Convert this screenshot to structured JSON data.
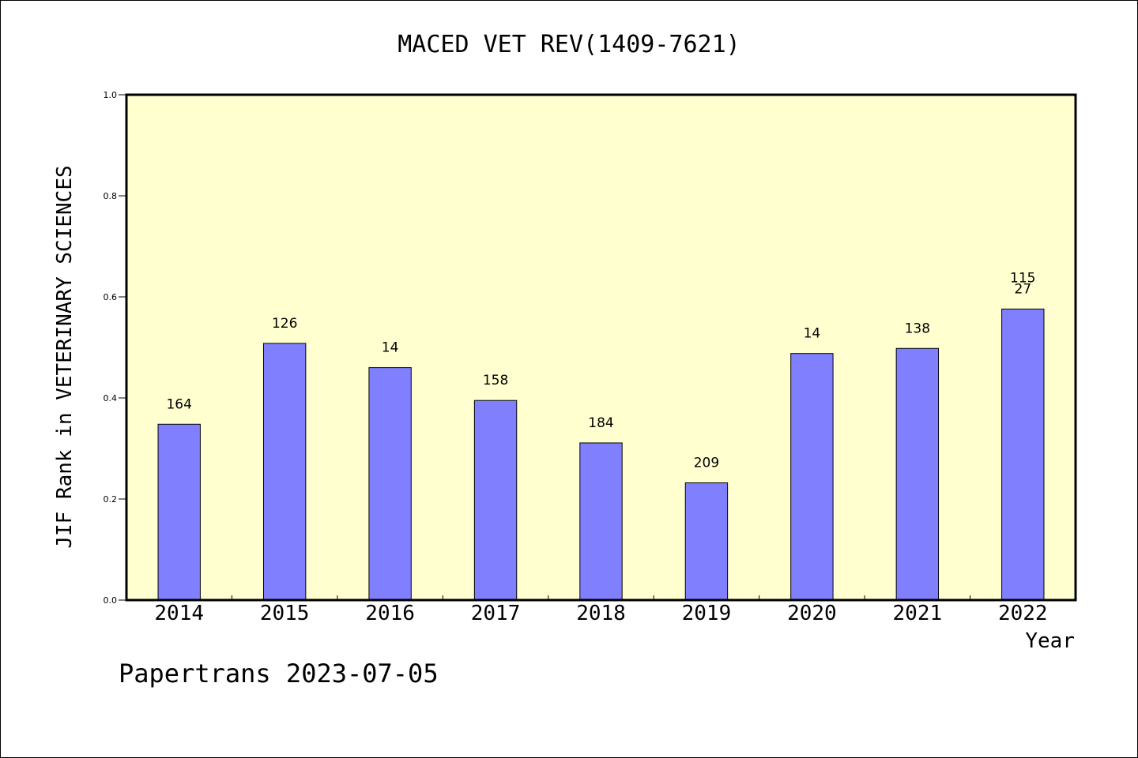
{
  "chart_data": {
    "type": "bar",
    "title": "MACED VET REV(1409-7621)",
    "ylabel": "JIF Rank in VETERINARY SCIENCES",
    "xlabel": "Year",
    "ylim": [
      0,
      1.0
    ],
    "yticks": [
      "0.0",
      "0.2",
      "0.4",
      "0.6",
      "0.8",
      "1.0"
    ],
    "categories": [
      "2014",
      "2015",
      "2016",
      "2017",
      "2018",
      "2019",
      "2020",
      "2021",
      "2022"
    ],
    "values": [
      0.348,
      0.508,
      0.46,
      0.395,
      0.311,
      0.232,
      0.488,
      0.498,
      0.576
    ],
    "bar_labels": [
      [
        "164"
      ],
      [
        "126"
      ],
      [
        "14"
      ],
      [
        "158"
      ],
      [
        "184"
      ],
      [
        "209"
      ],
      [
        "14"
      ],
      [
        "138"
      ],
      [
        "115",
        "27"
      ]
    ],
    "bar_color": "#8080ff",
    "plot_background": "#ffffd0",
    "grid": false,
    "footer": "Papertrans 2023-07-05"
  }
}
